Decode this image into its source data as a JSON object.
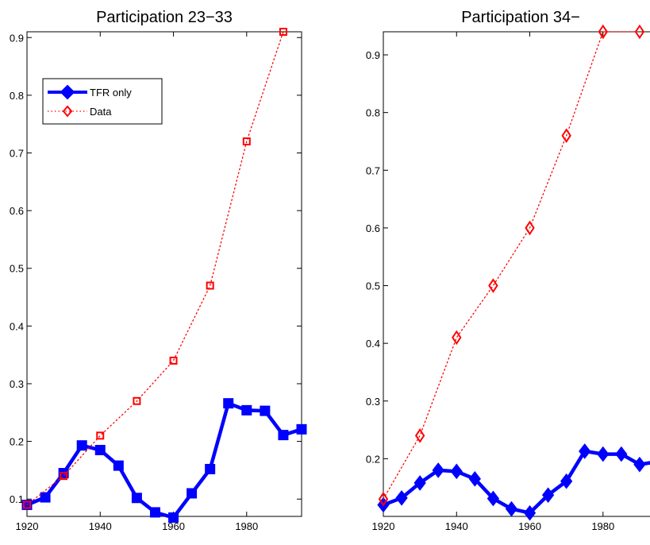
{
  "chart_data": [
    {
      "type": "line",
      "title": "Participation 23−33",
      "xlabel": "",
      "ylabel": "",
      "xlim": [
        1920,
        1995
      ],
      "ylim": [
        0.07,
        0.91
      ],
      "xticks": [
        1920,
        1940,
        1960,
        1980
      ],
      "yticks": [
        0.1,
        0.2,
        0.3,
        0.4,
        0.5,
        0.6,
        0.7,
        0.8,
        0.9
      ],
      "xtick_labels": [
        "1920",
        "1940",
        "1960",
        "1980"
      ],
      "ytick_labels": [
        "0.1",
        "0.2",
        "0.3",
        "0.4",
        "0.5",
        "0.6",
        "0.7",
        "0.8",
        "0.9"
      ],
      "grid": false,
      "legend": {
        "placement": "top-left",
        "entries": [
          "TFR only",
          "Data"
        ]
      },
      "series": [
        {
          "name": "TFR only",
          "color": "#0000ff",
          "style": "solid-thick",
          "marker": "square",
          "x": [
            1920,
            1925,
            1930,
            1935,
            1940,
            1945,
            1950,
            1955,
            1960,
            1965,
            1970,
            1975,
            1980,
            1985,
            1990,
            1995
          ],
          "y": [
            0.09,
            0.103,
            0.145,
            0.193,
            0.185,
            0.158,
            0.102,
            0.077,
            0.068,
            0.11,
            0.152,
            0.266,
            0.254,
            0.253,
            0.211,
            0.221
          ]
        },
        {
          "name": "Data",
          "color": "#ff0000",
          "style": "dotted",
          "marker": "square",
          "x": [
            1920,
            1930,
            1940,
            1950,
            1960,
            1970,
            1980,
            1990
          ],
          "y": [
            0.09,
            0.14,
            0.21,
            0.27,
            0.34,
            0.47,
            0.72,
            0.91
          ]
        }
      ]
    },
    {
      "type": "line",
      "title": "Participation 34−",
      "xlabel": "",
      "ylabel": "",
      "xlim": [
        1920,
        1995
      ],
      "ylim": [
        0.1,
        0.94
      ],
      "xticks": [
        1920,
        1940,
        1960,
        1980
      ],
      "yticks": [
        0.2,
        0.3,
        0.4,
        0.5,
        0.6,
        0.7,
        0.8,
        0.9
      ],
      "xtick_labels": [
        "1920",
        "1940",
        "1960",
        "1980"
      ],
      "ytick_labels": [
        "0.2",
        "0.3",
        "0.4",
        "0.5",
        "0.6",
        "0.7",
        "0.8",
        "0.9"
      ],
      "grid": false,
      "legend": null,
      "series": [
        {
          "name": "TFR only",
          "color": "#0000ff",
          "style": "solid-thick",
          "marker": "diamond",
          "x": [
            1920,
            1925,
            1930,
            1935,
            1940,
            1945,
            1950,
            1955,
            1960,
            1965,
            1970,
            1975,
            1980,
            1985,
            1990,
            1995
          ],
          "y": [
            0.12,
            0.132,
            0.158,
            0.18,
            0.178,
            0.165,
            0.131,
            0.113,
            0.106,
            0.137,
            0.161,
            0.213,
            0.208,
            0.208,
            0.19,
            0.195
          ]
        },
        {
          "name": "Data",
          "color": "#ff0000",
          "style": "dotted",
          "marker": "diamond",
          "x": [
            1920,
            1930,
            1940,
            1950,
            1960,
            1970,
            1980,
            1990
          ],
          "y": [
            0.13,
            0.24,
            0.41,
            0.5,
            0.6,
            0.76,
            0.94,
            0.94
          ]
        }
      ]
    }
  ]
}
